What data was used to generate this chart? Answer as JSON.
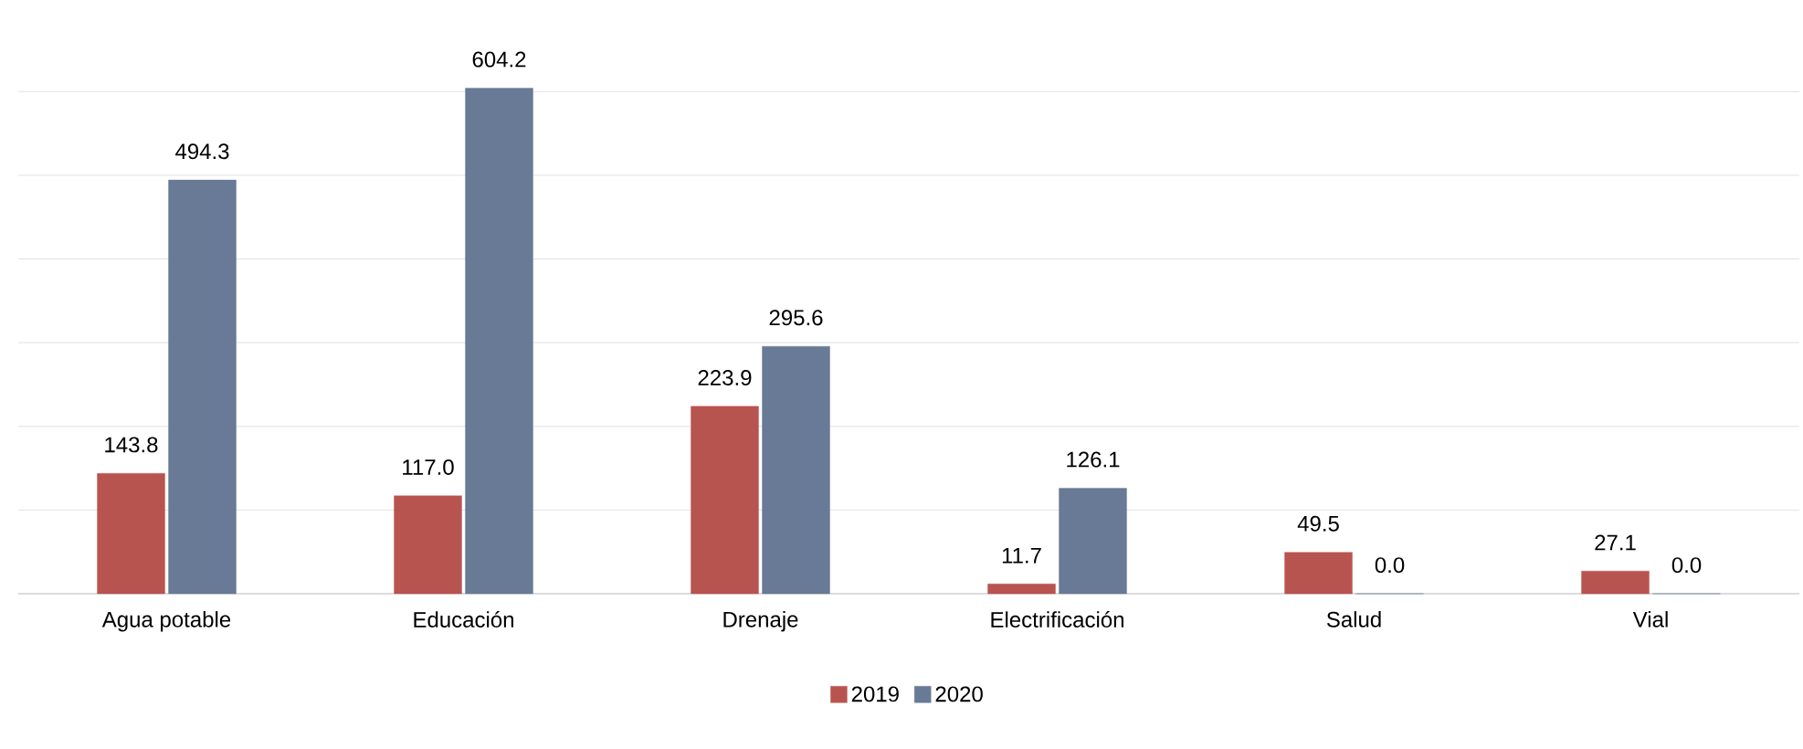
{
  "chart_data": {
    "type": "bar",
    "categories": [
      "Agua potable",
      "Educación",
      "Drenaje",
      "Electrificación",
      "Salud",
      "Vial"
    ],
    "series": [
      {
        "name": "2019",
        "color": "#b85450",
        "values": [
          143.8,
          117.0,
          223.9,
          11.7,
          49.5,
          27.1
        ],
        "value_labels": [
          "143.8",
          "117.0",
          "223.9",
          "11.7",
          "49.5",
          "27.1"
        ]
      },
      {
        "name": "2020",
        "color": "#687a96",
        "values": [
          494.3,
          604.2,
          295.6,
          126.1,
          0.0,
          0.0
        ],
        "value_labels": [
          "494.3",
          "604.2",
          "295.6",
          "126.1",
          "0.0",
          "0.0"
        ]
      }
    ],
    "grid": "y",
    "legend": "bottom"
  }
}
